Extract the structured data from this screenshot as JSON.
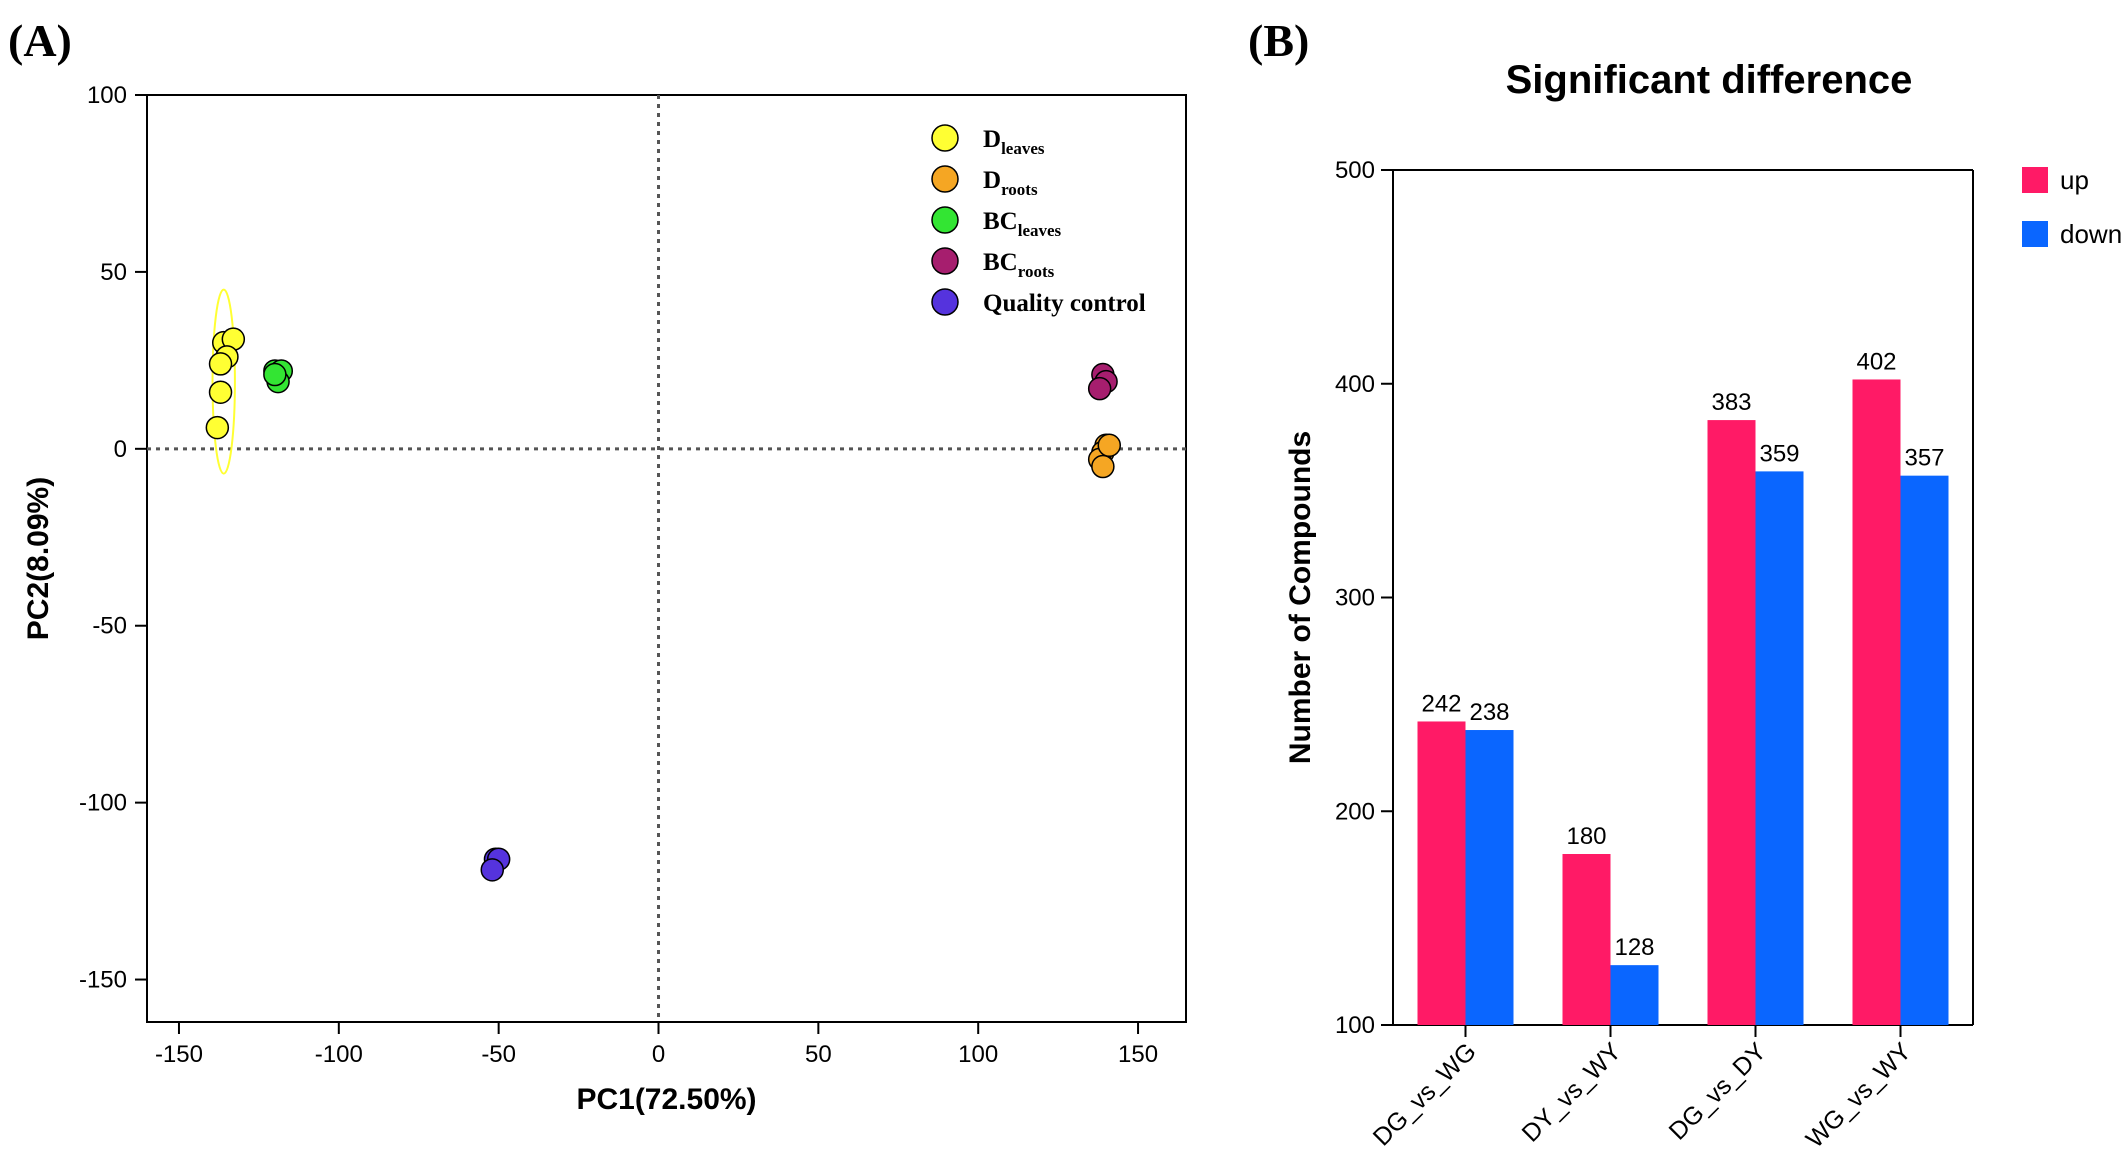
{
  "panels": {
    "a_label": "(A)",
    "b_label": "(B)"
  },
  "chart_data": [
    {
      "type": "scatter",
      "title": "",
      "xlabel": "PC1(72.50%)",
      "ylabel": "PC2(8.09%)",
      "xlim": [
        -160,
        165
      ],
      "ylim": [
        -162,
        100
      ],
      "xticks": [
        -150,
        -100,
        -50,
        0,
        50,
        100,
        150
      ],
      "yticks": [
        -150,
        -100,
        -50,
        0,
        50,
        100
      ],
      "xtick_labels": [
        "-150",
        "-100",
        "-50",
        "0",
        "50",
        "100",
        "150"
      ],
      "ytick_labels": [
        "-150",
        "-100",
        "-50",
        "0",
        "50",
        "100"
      ],
      "reference_lines": {
        "x": 0,
        "y": 0,
        "style": "dotted"
      },
      "grid": false,
      "legend_position": "top-right",
      "series": [
        {
          "name": "D",
          "sub": "leaves",
          "color": "#ffff33",
          "points": [
            [
              -136,
              30
            ],
            [
              -133,
              31
            ],
            [
              -135,
              26
            ],
            [
              -137,
              24
            ],
            [
              -137,
              16
            ],
            [
              -138,
              6
            ]
          ],
          "ellipse": {
            "cx": -136,
            "cy": 19,
            "rx": 3.5,
            "ry": 26,
            "color": "#ffff33"
          }
        },
        {
          "name": "D",
          "sub": "roots",
          "color": "#f5a623",
          "points": [
            [
              140,
              1
            ],
            [
              139,
              -1
            ],
            [
              138,
              -3
            ],
            [
              139,
              -5
            ],
            [
              141,
              1
            ]
          ]
        },
        {
          "name": "BC",
          "sub": "leaves",
          "color": "#33e533",
          "points": [
            [
              -120,
              22
            ],
            [
              -118,
              22
            ],
            [
              -119,
              19
            ],
            [
              -120,
              21
            ]
          ]
        },
        {
          "name": "BC",
          "sub": "roots",
          "color": "#a61e6e",
          "points": [
            [
              139,
              21
            ],
            [
              140,
              19
            ],
            [
              138,
              17
            ]
          ]
        },
        {
          "name": "Quality control",
          "sub": "",
          "color": "#5533dd",
          "points": [
            [
              -51,
              -116
            ],
            [
              -50,
              -116
            ],
            [
              -52,
              -119
            ]
          ]
        }
      ]
    },
    {
      "type": "bar",
      "title": "Significant difference",
      "xlabel": "",
      "ylabel": "Number of Compounds",
      "ylim": [
        100,
        500
      ],
      "yticks": [
        100,
        200,
        300,
        400,
        500
      ],
      "ytick_labels": [
        "100",
        "200",
        "300",
        "400",
        "500"
      ],
      "categories": [
        "DG_vs_WG",
        "DY_vs_WY",
        "DG_vs_DY",
        "WG_vs_WY"
      ],
      "legend_position": "top-right",
      "series": [
        {
          "name": "up",
          "color": "#ff1a66",
          "values": [
            242,
            180,
            383,
            402
          ],
          "labels": [
            "242",
            "180",
            "383",
            "402"
          ]
        },
        {
          "name": "down",
          "color": "#0a66ff",
          "values": [
            238,
            128,
            359,
            357
          ],
          "labels": [
            "238",
            "128",
            "359",
            "357"
          ]
        }
      ]
    }
  ]
}
